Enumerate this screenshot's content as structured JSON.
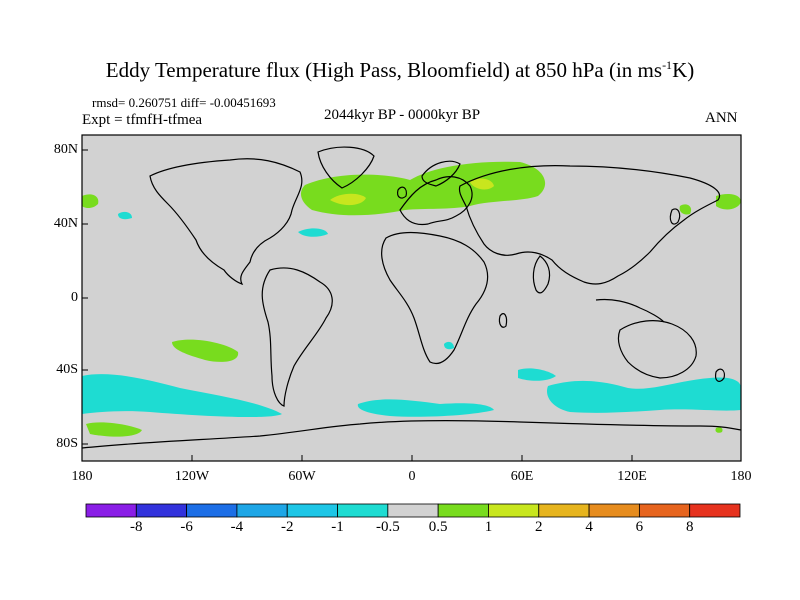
{
  "title": {
    "main": "Eddy Temperature flux (High Pass, Bloomfield) at 850 hPa (in ms",
    "sup": "-1",
    "tail": "K)"
  },
  "stats": {
    "rmsd_diff": "rmsd= 0.260751 diff= -0.00451693",
    "expt": "Expt = tfmfH-tfmea",
    "period": "2044kyr BP - 0000kyr BP",
    "season": "ANN"
  },
  "axes": {
    "y_ticks": [
      "80N",
      "40N",
      "0",
      "40S",
      "80S"
    ],
    "x_ticks": [
      "180",
      "120W",
      "60W",
      "0",
      "60E",
      "120E",
      "180"
    ]
  },
  "colorbar": {
    "colors": [
      "#8a1ee6",
      "#3232dc",
      "#1c6ee6",
      "#1ea6e6",
      "#1ec6e6",
      "#1edcd2",
      "#d2d2d2",
      "#78dc1e",
      "#c8e61e",
      "#e6b41e",
      "#e68c1e",
      "#e6641e",
      "#e6321e"
    ],
    "labels": [
      "-8",
      "-6",
      "-4",
      "-2",
      "-1",
      "-0.5",
      "0.5",
      "1",
      "2",
      "4",
      "6",
      "8"
    ]
  },
  "map_colors": {
    "background": "#d2d2d2",
    "positive_1": "#78dc1e",
    "positive_2": "#c8e61e",
    "negative_1": "#1edcd2",
    "coast": "#000000"
  }
}
